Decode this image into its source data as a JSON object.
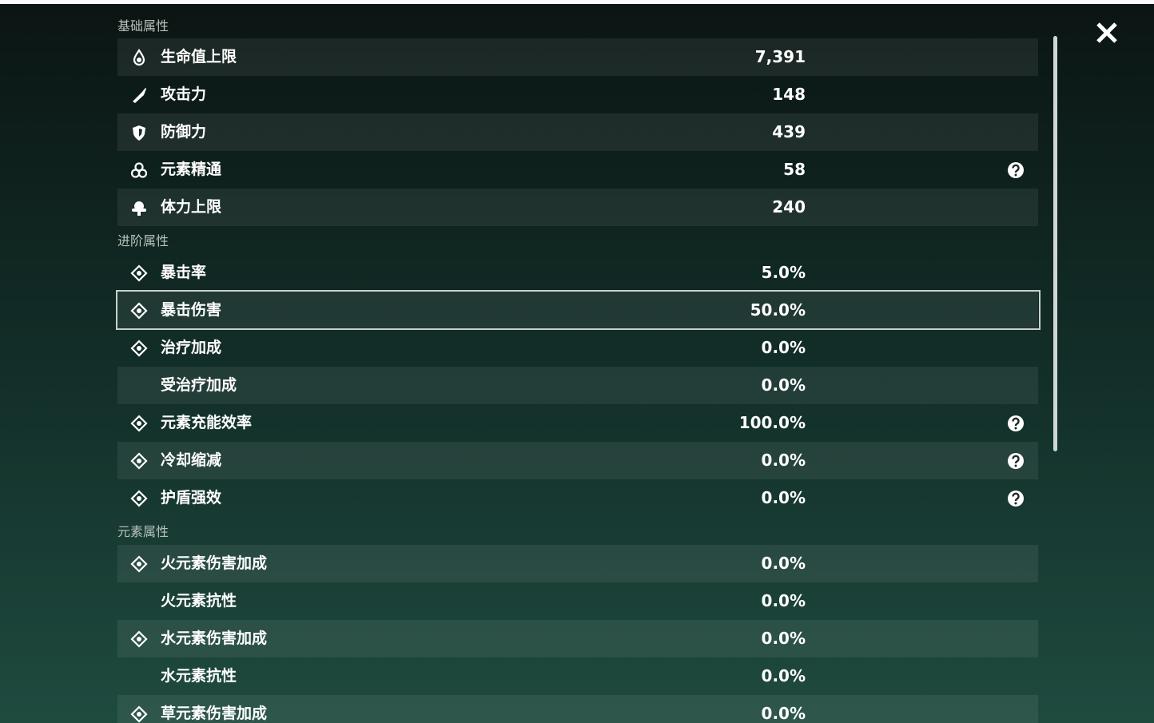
{
  "sections": [
    {
      "title": "基础属性",
      "rows": [
        {
          "label": "生命值上限",
          "value": "7,391"
        },
        {
          "label": "攻击力",
          "value": "148"
        },
        {
          "label": "防御力",
          "value": "439"
        },
        {
          "label": "元素精通",
          "value": "58",
          "help": true
        },
        {
          "label": "体力上限",
          "value": "240"
        }
      ]
    },
    {
      "title": "进阶属性",
      "rows": [
        {
          "label": "暴击率",
          "value": "5.0%"
        },
        {
          "label": "暴击伤害",
          "value": "50.0%"
        },
        {
          "label": "治疗加成",
          "value": "0.0%"
        },
        {
          "label": "受治疗加成",
          "value": "0.0%"
        },
        {
          "label": "元素充能效率",
          "value": "100.0%",
          "help": true
        },
        {
          "label": "冷却缩减",
          "value": "0.0%",
          "help": true
        },
        {
          "label": "护盾强效",
          "value": "0.0%",
          "help": true
        }
      ]
    },
    {
      "title": "元素属性",
      "rows": [
        {
          "label": "火元素伤害加成",
          "value": "0.0%"
        },
        {
          "label": "火元素抗性",
          "value": "0.0%"
        },
        {
          "label": "水元素伤害加成",
          "value": "0.0%"
        },
        {
          "label": "水元素抗性",
          "value": "0.0%"
        },
        {
          "label": "草元素伤害加成",
          "value": "0.0%"
        }
      ]
    }
  ]
}
